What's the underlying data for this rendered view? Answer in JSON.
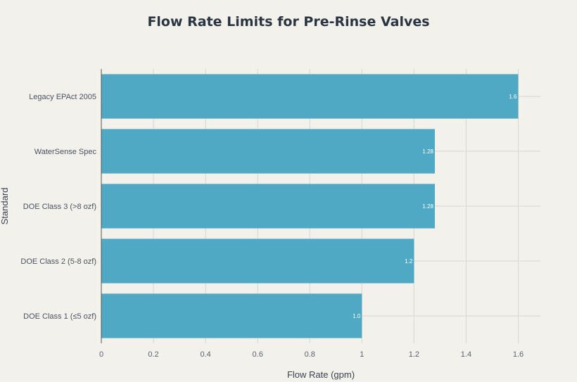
{
  "chart_data": {
    "type": "bar",
    "orientation": "horizontal",
    "title": "Flow Rate Limits for Pre-Rinse Valves",
    "xlabel": "Flow Rate (gpm)",
    "ylabel": "Standard",
    "categories": [
      "Legacy EPAct 2005",
      "WaterSense Spec",
      "DOE Class 3 (>8 ozf)",
      "DOE Class 2 (5-8 ozf)",
      "DOE Class 1 (≤5 ozf)"
    ],
    "values": [
      1.6,
      1.28,
      1.28,
      1.2,
      1.0
    ],
    "data_labels": [
      "1.6",
      "1.28",
      "1.28",
      "1.2",
      "1.0"
    ],
    "xticks": [
      "0",
      "0.2",
      "0.4",
      "0.6",
      "0.8",
      "1",
      "1.2",
      "1.4",
      "1.6"
    ],
    "xlim": [
      0,
      1.68
    ],
    "grid": true,
    "bar_color": "#4fa9c5"
  }
}
